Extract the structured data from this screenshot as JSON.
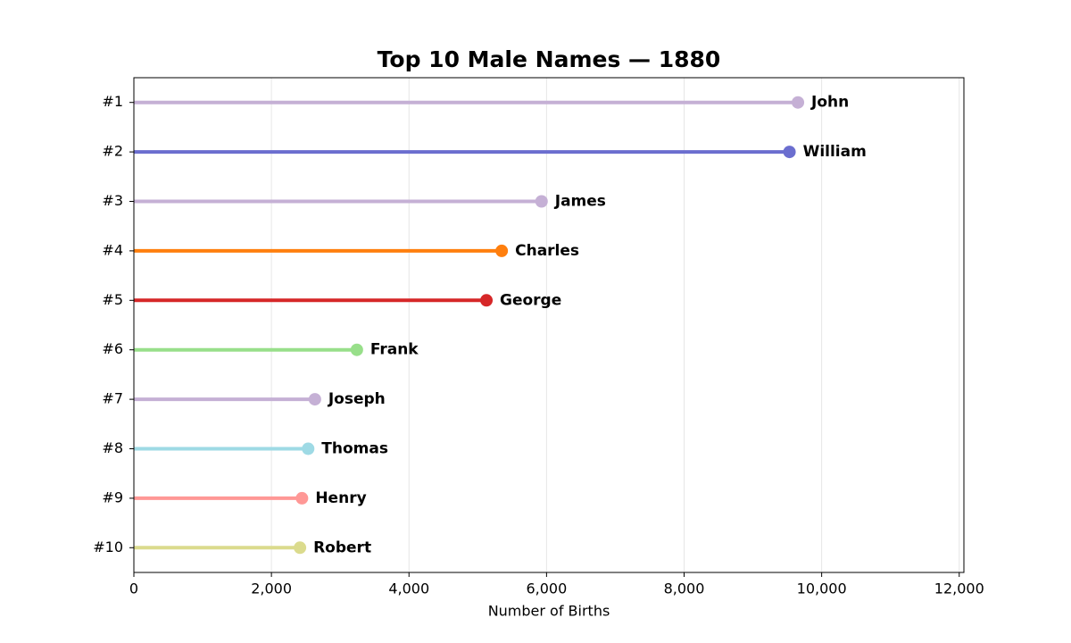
{
  "chart_data": {
    "type": "lollipop",
    "title": "Top 10 Male Names — 1880",
    "xlabel": "Number of Births",
    "categories": [
      "#1",
      "#2",
      "#3",
      "#4",
      "#5",
      "#6",
      "#7",
      "#8",
      "#9",
      "#10"
    ],
    "values": [
      9655,
      9532,
      5927,
      5348,
      5126,
      3242,
      2632,
      2534,
      2444,
      2415
    ],
    "labels": [
      "John",
      "William",
      "James",
      "Charles",
      "George",
      "Frank",
      "Joseph",
      "Thomas",
      "Henry",
      "Robert"
    ],
    "colors": [
      "#c5b0d5",
      "#6b6ecf",
      "#c5b0d5",
      "#ff7f0e",
      "#d62728",
      "#98df8a",
      "#c5b0d5",
      "#9edae5",
      "#ff9896",
      "#dbdb8d"
    ],
    "xlim": [
      0,
      12068
    ],
    "xticks": [
      0,
      {
        "value": 2000,
        "label": "2,000"
      },
      {
        "value": 4000,
        "label": "4,000"
      },
      {
        "value": 6000,
        "label": "6,000"
      },
      {
        "value": 8000,
        "label": "8,000"
      },
      {
        "value": 10000,
        "label": "10,000"
      },
      {
        "value": 12000,
        "label": "12,000"
      }
    ],
    "grid": true
  }
}
